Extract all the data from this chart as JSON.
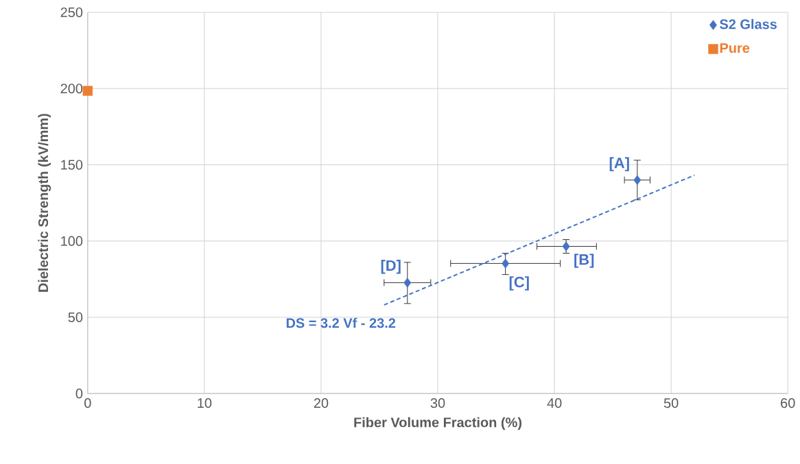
{
  "chart_data": {
    "type": "scatter",
    "xlabel": "Fiber Volume Fraction (%)",
    "ylabel": "Dielectric Strength (kV/mm)",
    "xlim": [
      0,
      60
    ],
    "ylim": [
      0,
      250
    ],
    "xticks": [
      0,
      10,
      20,
      30,
      40,
      50,
      60
    ],
    "yticks": [
      0,
      50,
      100,
      150,
      200,
      250
    ],
    "grid": true,
    "legend": "top right",
    "series": [
      {
        "name": "S2 Glass",
        "color": "#4472c4",
        "marker": "diamond",
        "x": [
          47.1,
          41.0,
          35.8,
          27.4
        ],
        "values": [
          140,
          96.5,
          85.3,
          72.7
        ],
        "errors": [
          [
            127,
            153
          ],
          [
            92,
            101
          ],
          [
            78,
            92
          ],
          [
            59,
            86
          ]
        ],
        "xerrors": [
          [
            46.0,
            48.2
          ],
          [
            38.5,
            43.6
          ],
          [
            31.1,
            40.5
          ],
          [
            25.4,
            29.4
          ]
        ]
      },
      {
        "name": "Pure",
        "color": "#ed7d31",
        "marker": "square",
        "x": [
          0
        ],
        "values": [
          198.5
        ]
      },
      {
        "type": "line",
        "color": "#4472c4",
        "line_style": "dashed",
        "marker": "none",
        "x": [
          25.4,
          52
        ],
        "values": [
          58.1,
          143.2
        ]
      }
    ],
    "annotations": [
      {
        "text": "[A]",
        "x": 47.1,
        "y": 140
      },
      {
        "text": "[B]",
        "x": 41.0,
        "y": 96.5
      },
      {
        "text": "[C]",
        "x": 35.8,
        "y": 85.3
      },
      {
        "text": "[D]",
        "x": 27.4,
        "y": 72.7
      },
      "DS = 3.2 Vf - 23.2"
    ]
  }
}
